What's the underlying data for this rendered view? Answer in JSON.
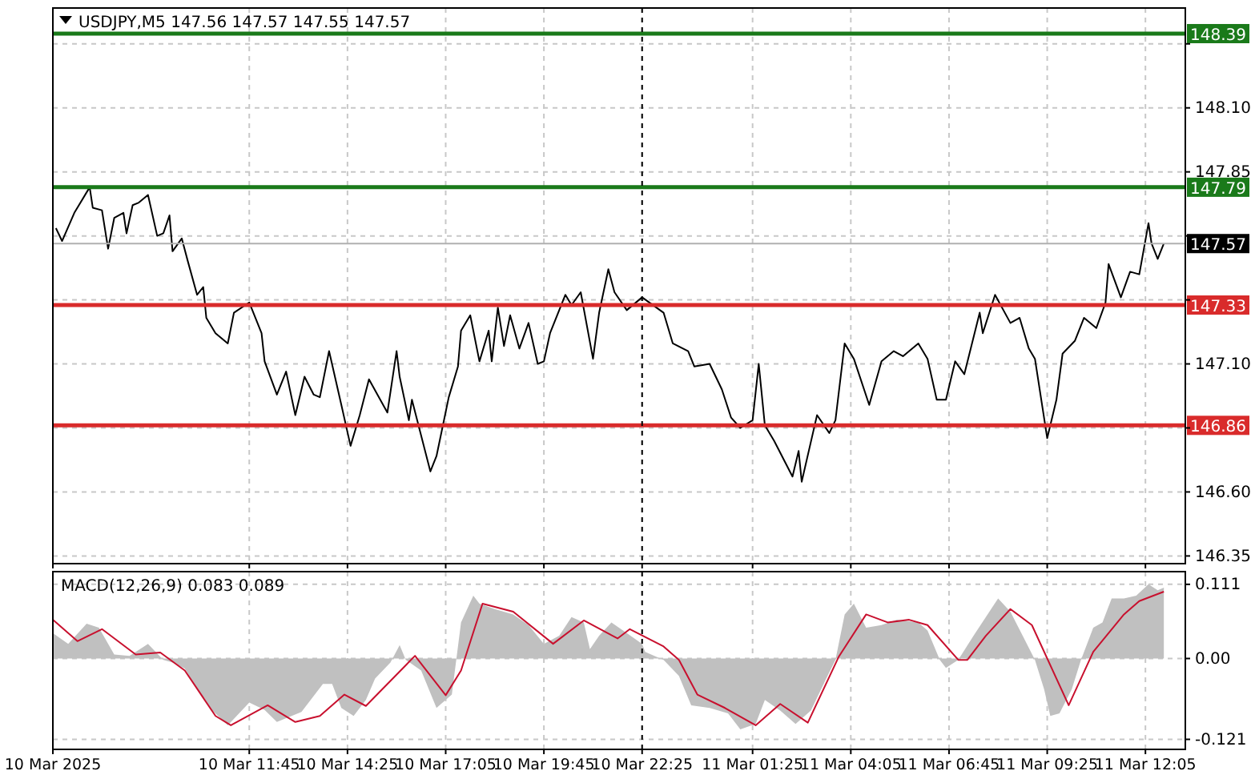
{
  "chart_data": [
    {
      "type": "line",
      "title": "USDJPY,M5  147.56 147.57 147.55 147.57",
      "xlim": [
        "2025-03-10T06:25",
        "2025-03-11T13:10"
      ],
      "ylim": [
        146.32,
        148.49
      ],
      "tick_labels": "y",
      "grid": true,
      "xticks": [
        "2025-03-10T06:25",
        "2025-03-10T11:45",
        "2025-03-10T14:25",
        "2025-03-10T17:05",
        "2025-03-10T19:45",
        "2025-03-10T22:25",
        "2025-03-11T01:25",
        "2025-03-11T04:05",
        "2025-03-11T06:45",
        "2025-03-11T09:25",
        "2025-03-11T12:05"
      ],
      "yticks": [
        {
          "value": 146.35,
          "label": "146.35"
        },
        {
          "value": 146.6,
          "label": "146.60"
        },
        {
          "value": 146.85,
          "label": null
        },
        {
          "value": 147.1,
          "label": "147.10"
        },
        {
          "value": 147.35,
          "label": null
        },
        {
          "value": 147.6,
          "label": null
        },
        {
          "value": 147.85,
          "label": "147.85"
        },
        {
          "value": 148.1,
          "label": "148.10"
        },
        {
          "value": 148.35,
          "label": null
        }
      ],
      "ref_lines": [
        {
          "axis": "y",
          "value": 148.39,
          "label": "148.39",
          "color": "#1a7a1a"
        },
        {
          "axis": "y",
          "value": 147.79,
          "label": "147.79",
          "color": "#1a7a1a"
        },
        {
          "axis": "y",
          "value": 147.57,
          "label": "147.57",
          "color": "#b0b0b0"
        },
        {
          "axis": "y",
          "value": 147.33,
          "label": "147.33",
          "color": "#d92b2b"
        },
        {
          "axis": "y",
          "value": 146.86,
          "label": "146.86",
          "color": "#d92b2b"
        },
        {
          "axis": "x",
          "value": "2025-03-10T22:25",
          "color": "#000000",
          "line_style": "dashed"
        }
      ],
      "series": [
        {
          "color": "#000000",
          "x": [
            "2025-03-10T06:30",
            "2025-03-10T06:40",
            "2025-03-10T07:00",
            "2025-03-10T07:25",
            "2025-03-10T07:30",
            "2025-03-10T07:45",
            "2025-03-10T07:55",
            "2025-03-10T08:05",
            "2025-03-10T08:20",
            "2025-03-10T08:25",
            "2025-03-10T08:35",
            "2025-03-10T08:45",
            "2025-03-10T09:00",
            "2025-03-10T09:15",
            "2025-03-10T09:25",
            "2025-03-10T09:35",
            "2025-03-10T09:40",
            "2025-03-10T09:55",
            "2025-03-10T10:05",
            "2025-03-10T10:20",
            "2025-03-10T10:30",
            "2025-03-10T10:35",
            "2025-03-10T10:50",
            "2025-03-10T11:10",
            "2025-03-10T11:20",
            "2025-03-10T11:45",
            "2025-03-10T12:05",
            "2025-03-10T12:10",
            "2025-03-10T12:30",
            "2025-03-10T12:45",
            "2025-03-10T13:00",
            "2025-03-10T13:15",
            "2025-03-10T13:30",
            "2025-03-10T13:40",
            "2025-03-10T13:55",
            "2025-03-10T14:15",
            "2025-03-10T14:30",
            "2025-03-10T14:45",
            "2025-03-10T15:00",
            "2025-03-10T15:30",
            "2025-03-10T15:45",
            "2025-03-10T15:50",
            "2025-03-10T16:05",
            "2025-03-10T16:10",
            "2025-03-10T16:40",
            "2025-03-10T16:50",
            "2025-03-10T17:10",
            "2025-03-10T17:25",
            "2025-03-10T17:30",
            "2025-03-10T17:45",
            "2025-03-10T18:00",
            "2025-03-10T18:15",
            "2025-03-10T18:20",
            "2025-03-10T18:30",
            "2025-03-10T18:40",
            "2025-03-10T18:50",
            "2025-03-10T19:05",
            "2025-03-10T19:20",
            "2025-03-10T19:35",
            "2025-03-10T19:45",
            "2025-03-10T19:55",
            "2025-03-10T20:20",
            "2025-03-10T20:30",
            "2025-03-10T20:45",
            "2025-03-10T21:05",
            "2025-03-10T21:15",
            "2025-03-10T21:30",
            "2025-03-10T21:40",
            "2025-03-10T22:00",
            "2025-03-10T22:25",
            "2025-03-10T23:00",
            "2025-03-10T23:15",
            "2025-03-10T23:40",
            "2025-03-10T23:50",
            "2025-03-11T00:15",
            "2025-03-11T00:35",
            "2025-03-11T00:50",
            "2025-03-11T01:05",
            "2025-03-11T01:25",
            "2025-03-11T01:35",
            "2025-03-11T01:45",
            "2025-03-11T02:00",
            "2025-03-11T02:30",
            "2025-03-11T02:40",
            "2025-03-11T02:45",
            "2025-03-11T03:10",
            "2025-03-11T03:30",
            "2025-03-11T03:40",
            "2025-03-11T03:55",
            "2025-03-11T04:10",
            "2025-03-11T04:35",
            "2025-03-11T04:55",
            "2025-03-11T05:15",
            "2025-03-11T05:30",
            "2025-03-11T05:55",
            "2025-03-11T06:10",
            "2025-03-11T06:25",
            "2025-03-11T06:40",
            "2025-03-11T06:55",
            "2025-03-11T07:10",
            "2025-03-11T07:35",
            "2025-03-11T07:40",
            "2025-03-11T08:00",
            "2025-03-11T08:25",
            "2025-03-11T08:40",
            "2025-03-11T08:55",
            "2025-03-11T09:05",
            "2025-03-11T09:25",
            "2025-03-11T09:40",
            "2025-03-11T09:50",
            "2025-03-11T10:10",
            "2025-03-11T10:25",
            "2025-03-11T10:45",
            "2025-03-11T11:00",
            "2025-03-11T11:05",
            "2025-03-11T11:25",
            "2025-03-11T11:40",
            "2025-03-11T11:55",
            "2025-03-11T12:10",
            "2025-03-11T12:15",
            "2025-03-11T12:25",
            "2025-03-11T12:35"
          ],
          "values": [
            147.63,
            147.58,
            147.69,
            147.79,
            147.71,
            147.7,
            147.55,
            147.67,
            147.69,
            147.61,
            147.72,
            147.73,
            147.76,
            147.6,
            147.61,
            147.68,
            147.54,
            147.59,
            147.5,
            147.37,
            147.4,
            147.28,
            147.22,
            147.18,
            147.3,
            147.34,
            147.22,
            147.11,
            146.98,
            147.07,
            146.9,
            147.05,
            146.98,
            146.97,
            147.15,
            146.94,
            146.78,
            146.9,
            147.04,
            146.91,
            147.15,
            147.05,
            146.88,
            146.96,
            146.68,
            146.74,
            146.97,
            147.09,
            147.23,
            147.29,
            147.11,
            147.23,
            147.11,
            147.32,
            147.17,
            147.29,
            147.16,
            147.26,
            147.1,
            147.11,
            147.22,
            147.37,
            147.33,
            147.38,
            147.12,
            147.3,
            147.47,
            147.38,
            147.31,
            147.36,
            147.3,
            147.18,
            147.15,
            147.09,
            147.1,
            147.0,
            146.89,
            146.85,
            146.88,
            147.1,
            146.86,
            146.8,
            146.66,
            146.76,
            146.64,
            146.9,
            146.83,
            146.88,
            147.18,
            147.12,
            146.94,
            147.11,
            147.15,
            147.13,
            147.18,
            147.12,
            146.96,
            146.96,
            147.11,
            147.06,
            147.3,
            147.22,
            147.37,
            147.26,
            147.28,
            147.16,
            147.12,
            146.81,
            146.96,
            147.14,
            147.19,
            147.28,
            147.24,
            147.34,
            147.49,
            147.36,
            147.46,
            147.45,
            147.65,
            147.57,
            147.51,
            147.57
          ]
        }
      ]
    },
    {
      "type": "line",
      "title": "MACD(12,26,9) 0.083 0.089",
      "xlim": [
        "2025-03-10T06:25",
        "2025-03-11T13:10"
      ],
      "ylim": [
        -0.136,
        0.13
      ],
      "grid": true,
      "xticks": [
        {
          "value": "2025-03-10T06:25",
          "label": "10 Mar 2025"
        },
        {
          "value": "2025-03-10T11:45",
          "label": "10 Mar 11:45"
        },
        {
          "value": "2025-03-10T14:25",
          "label": "10 Mar 14:25"
        },
        {
          "value": "2025-03-10T17:05",
          "label": "10 Mar 17:05"
        },
        {
          "value": "2025-03-10T19:45",
          "label": "10 Mar 19:45"
        },
        {
          "value": "2025-03-10T22:25",
          "label": "10 Mar 22:25"
        },
        {
          "value": "2025-03-11T01:25",
          "label": "11 Mar 01:25"
        },
        {
          "value": "2025-03-11T04:05",
          "label": "11 Mar 04:05"
        },
        {
          "value": "2025-03-11T06:45",
          "label": "11 Mar 06:45"
        },
        {
          "value": "2025-03-11T09:25",
          "label": "11 Mar 09:25"
        },
        {
          "value": "2025-03-11T12:05",
          "label": "11 Mar 12:05"
        }
      ],
      "yticks": [
        {
          "value": 0.111,
          "label": "0.111"
        },
        {
          "value": 0,
          "label": "0.00"
        },
        {
          "value": -0.121,
          "label": "-0.121"
        }
      ],
      "ref_lines": [
        {
          "axis": "x",
          "value": "2025-03-10T22:25",
          "color": "#000000",
          "line_style": "dashed"
        }
      ],
      "series": [
        {
          "type": "area",
          "color": "#c0c0c0",
          "x": [
            "2025-03-10T06:25",
            "2025-03-10T06:50",
            "2025-03-10T07:20",
            "2025-03-10T07:40",
            "2025-03-10T08:05",
            "2025-03-10T08:30",
            "2025-03-10T09:00",
            "2025-03-10T09:25",
            "2025-03-10T09:40",
            "2025-03-10T10:00",
            "2025-03-10T10:20",
            "2025-03-10T10:45",
            "2025-03-10T11:10",
            "2025-03-10T11:45",
            "2025-03-10T12:10",
            "2025-03-10T12:30",
            "2025-03-10T13:10",
            "2025-03-10T13:45",
            "2025-03-10T14:00",
            "2025-03-10T14:15",
            "2025-03-10T14:35",
            "2025-03-10T14:55",
            "2025-03-10T15:10",
            "2025-03-10T15:35",
            "2025-03-10T15:50",
            "2025-03-10T16:00",
            "2025-03-10T16:25",
            "2025-03-10T16:50",
            "2025-03-10T17:15",
            "2025-03-10T17:30",
            "2025-03-10T17:50",
            "2025-03-10T18:00",
            "2025-03-10T18:25",
            "2025-03-10T18:55",
            "2025-03-10T19:20",
            "2025-03-10T19:45",
            "2025-03-10T20:10",
            "2025-03-10T20:30",
            "2025-03-10T20:50",
            "2025-03-10T21:00",
            "2025-03-10T21:15",
            "2025-03-10T21:35",
            "2025-03-10T22:00",
            "2025-03-10T22:25",
            "2025-03-10T22:30",
            "2025-03-10T23:00",
            "2025-03-10T23:25",
            "2025-03-10T23:45",
            "2025-03-11T00:15",
            "2025-03-11T00:45",
            "2025-03-11T01:05",
            "2025-03-11T01:30",
            "2025-03-11T01:45",
            "2025-03-11T02:10",
            "2025-03-11T02:35",
            "2025-03-11T03:00",
            "2025-03-11T03:25",
            "2025-03-11T03:40",
            "2025-03-11T03:55",
            "2025-03-11T04:10",
            "2025-03-11T04:30",
            "2025-03-11T04:55",
            "2025-03-11T05:20",
            "2025-03-11T05:55",
            "2025-03-11T06:10",
            "2025-03-11T06:30",
            "2025-03-11T06:40",
            "2025-03-11T07:00",
            "2025-03-11T07:25",
            "2025-03-11T07:45",
            "2025-03-11T08:05",
            "2025-03-11T08:25",
            "2025-03-11T08:45",
            "2025-03-11T09:05",
            "2025-03-11T09:20",
            "2025-03-11T09:30",
            "2025-03-11T09:45",
            "2025-03-11T10:05",
            "2025-03-11T10:20",
            "2025-03-11T10:40",
            "2025-03-11T10:55",
            "2025-03-11T11:10",
            "2025-03-11T11:30",
            "2025-03-11T11:50",
            "2025-03-11T12:10",
            "2025-03-11T12:25",
            "2025-03-11T12:35"
          ],
          "values": [
            0.038,
            0.022,
            0.052,
            0.046,
            0.006,
            0.004,
            0.022,
            -0.002,
            -0.006,
            -0.015,
            -0.046,
            -0.078,
            -0.1,
            -0.066,
            -0.077,
            -0.095,
            -0.08,
            -0.038,
            -0.038,
            -0.074,
            -0.086,
            -0.062,
            -0.03,
            -0.006,
            0.02,
            -0.002,
            -0.018,
            -0.074,
            -0.054,
            0.054,
            0.094,
            0.082,
            0.074,
            0.066,
            0.05,
            0.022,
            0.034,
            0.062,
            0.054,
            0.014,
            0.034,
            0.054,
            0.038,
            0.022,
            0.01,
            -0.002,
            -0.026,
            -0.07,
            -0.074,
            -0.082,
            -0.106,
            -0.098,
            -0.062,
            -0.078,
            -0.098,
            -0.078,
            -0.03,
            -0.002,
            0.066,
            0.082,
            0.046,
            0.05,
            0.058,
            0.054,
            0.042,
            -0.002,
            -0.014,
            -0.002,
            0.034,
            0.062,
            0.09,
            0.07,
            0.034,
            -0.002,
            -0.046,
            -0.086,
            -0.082,
            -0.046,
            -0.002,
            0.046,
            0.054,
            0.09,
            0.09,
            0.094,
            0.111,
            0.102,
            0.106
          ]
        },
        {
          "color": "#c8102e",
          "x": [
            "2025-03-10T06:25",
            "2025-03-10T07:05",
            "2025-03-10T07:45",
            "2025-03-10T08:40",
            "2025-03-10T09:20",
            "2025-03-10T10:00",
            "2025-03-10T10:50",
            "2025-03-10T11:15",
            "2025-03-10T12:15",
            "2025-03-10T13:00",
            "2025-03-10T13:40",
            "2025-03-10T14:20",
            "2025-03-10T14:55",
            "2025-03-10T16:15",
            "2025-03-10T17:05",
            "2025-03-10T17:30",
            "2025-03-10T18:05",
            "2025-03-10T18:55",
            "2025-03-10T20:00",
            "2025-03-10T20:50",
            "2025-03-10T21:45",
            "2025-03-10T22:05",
            "2025-03-10T23:00",
            "2025-03-10T23:25",
            "2025-03-10T23:55",
            "2025-03-11T00:40",
            "2025-03-11T01:30",
            "2025-03-11T02:10",
            "2025-03-11T02:55",
            "2025-03-11T03:45",
            "2025-03-11T04:30",
            "2025-03-11T05:05",
            "2025-03-11T05:40",
            "2025-03-11T06:10",
            "2025-03-11T07:00",
            "2025-03-11T07:15",
            "2025-03-11T07:45",
            "2025-03-11T08:25",
            "2025-03-11T09:00",
            "2025-03-11T10:00",
            "2025-03-11T10:40",
            "2025-03-11T11:30",
            "2025-03-11T11:55",
            "2025-03-11T12:35"
          ],
          "values": [
            0.058,
            0.026,
            0.044,
            0.006,
            0.009,
            -0.018,
            -0.086,
            -0.1,
            -0.07,
            -0.095,
            -0.086,
            -0.054,
            -0.071,
            0.004,
            -0.055,
            -0.018,
            0.082,
            0.07,
            0.022,
            0.057,
            0.03,
            0.044,
            0.018,
            -0.002,
            -0.054,
            -0.074,
            -0.1,
            -0.068,
            -0.096,
            0.002,
            0.066,
            0.054,
            0.058,
            0.05,
            -0.002,
            -0.002,
            0.034,
            0.074,
            0.05,
            -0.07,
            0.01,
            0.066,
            0.086,
            0.1
          ]
        }
      ]
    }
  ]
}
